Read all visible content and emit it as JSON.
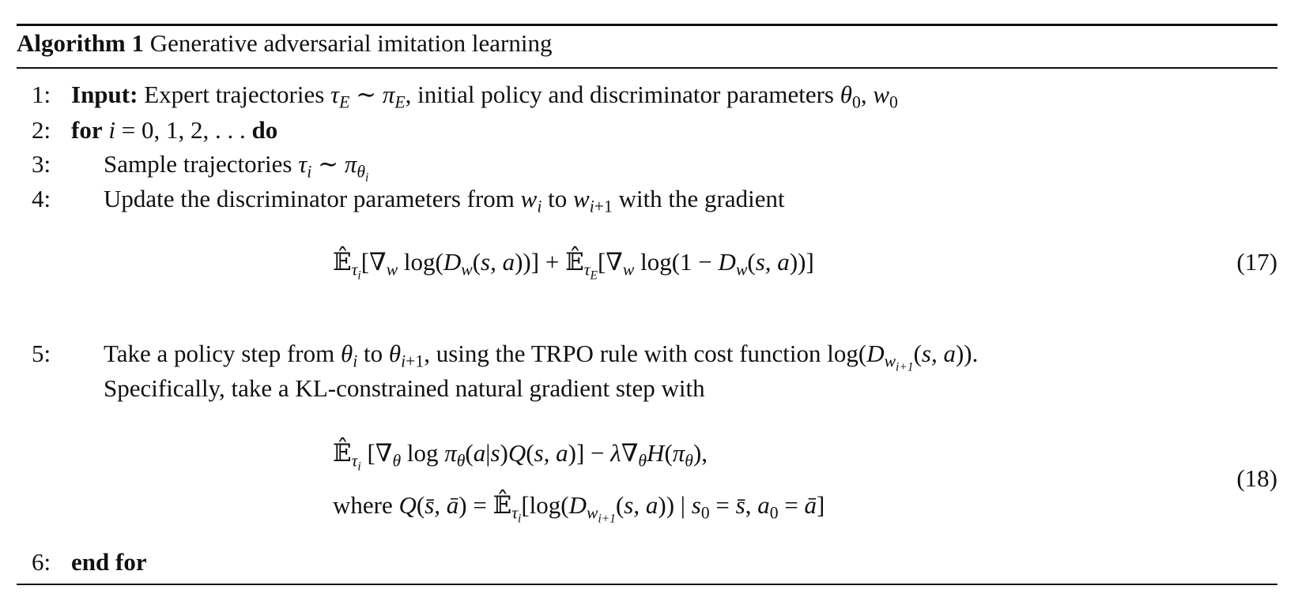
{
  "algorithm": {
    "label": "Algorithm 1",
    "title": "Generative adversarial imitation learning",
    "steps": [
      {
        "num": "1:",
        "indent": 0,
        "segments": [
          {
            "t": "Input:",
            "s": "b"
          },
          {
            "t": " Expert trajectories ",
            "s": "r"
          },
          {
            "t": "τ",
            "s": "i"
          },
          {
            "t": "E",
            "s": "sub"
          },
          {
            "t": " ∼ ",
            "s": "r"
          },
          {
            "t": "π",
            "s": "i"
          },
          {
            "t": "E",
            "s": "sub"
          },
          {
            "t": ", initial policy and discriminator parameters ",
            "s": "r"
          },
          {
            "t": "θ",
            "s": "i"
          },
          {
            "t": "0",
            "s": "subr"
          },
          {
            "t": ", ",
            "s": "r"
          },
          {
            "t": "w",
            "s": "i"
          },
          {
            "t": "0",
            "s": "subr"
          }
        ]
      },
      {
        "num": "2:",
        "indent": 0,
        "segments": [
          {
            "t": "for",
            "s": "b"
          },
          {
            "t": " ",
            "s": "r"
          },
          {
            "t": "i",
            "s": "i"
          },
          {
            "t": " = 0, 1, 2, . . . ",
            "s": "r"
          },
          {
            "t": "do",
            "s": "b"
          }
        ]
      },
      {
        "num": "3:",
        "indent": 1,
        "segments": [
          {
            "t": "Sample trajectories ",
            "s": "r"
          },
          {
            "t": "τ",
            "s": "i"
          },
          {
            "t": "i",
            "s": "sub"
          },
          {
            "t": " ∼ ",
            "s": "r"
          },
          {
            "t": "π",
            "s": "i"
          },
          {
            "t": "θ",
            "s": "sub"
          },
          {
            "t": "i",
            "s": "ss"
          }
        ]
      },
      {
        "num": "4:",
        "indent": 1,
        "segments": [
          {
            "t": "Update the discriminator parameters from ",
            "s": "r"
          },
          {
            "t": "w",
            "s": "i"
          },
          {
            "t": "i",
            "s": "sub"
          },
          {
            "t": " to ",
            "s": "r"
          },
          {
            "t": "w",
            "s": "i"
          },
          {
            "t": "i",
            "s": "sub"
          },
          {
            "t": "+1",
            "s": "subr"
          },
          {
            "t": " with the gradient",
            "s": "r"
          }
        ]
      },
      {
        "num": "5:",
        "indent": 1,
        "segments": [
          {
            "t": "Take a policy step from ",
            "s": "r"
          },
          {
            "t": "θ",
            "s": "i"
          },
          {
            "t": "i",
            "s": "sub"
          },
          {
            "t": " to ",
            "s": "r"
          },
          {
            "t": "θ",
            "s": "i"
          },
          {
            "t": "i",
            "s": "sub"
          },
          {
            "t": "+1",
            "s": "subr"
          },
          {
            "t": ", using the TRPO rule with cost function log(",
            "s": "r"
          },
          {
            "t": "D",
            "s": "i"
          },
          {
            "t": "w",
            "s": "sub"
          },
          {
            "t": "i+1",
            "s": "ss"
          },
          {
            "t": "(",
            "s": "r"
          },
          {
            "t": "s, a",
            "s": "i"
          },
          {
            "t": ")).",
            "s": "r"
          }
        ]
      },
      {
        "num": "",
        "indent": 1,
        "segments": [
          {
            "t": "Specifically, take a KL-constrained natural gradient step with",
            "s": "r"
          }
        ]
      },
      {
        "num": "6:",
        "indent": 0,
        "segments": [
          {
            "t": "end for",
            "s": "b"
          }
        ]
      }
    ],
    "equations": [
      {
        "number": "(17)",
        "lines": [
          [
            {
              "t": "𝔼̂",
              "s": "r"
            },
            {
              "t": "τ",
              "s": "sub"
            },
            {
              "t": "i",
              "s": "ss"
            },
            {
              "t": "[∇",
              "s": "r"
            },
            {
              "t": "w",
              "s": "sub"
            },
            {
              "t": " log(",
              "s": "r"
            },
            {
              "t": "D",
              "s": "i"
            },
            {
              "t": "w",
              "s": "sub"
            },
            {
              "t": "(",
              "s": "r"
            },
            {
              "t": "s, a",
              "s": "i"
            },
            {
              "t": "))] + ",
              "s": "r"
            },
            {
              "t": "𝔼̂",
              "s": "r"
            },
            {
              "t": "τ",
              "s": "sub"
            },
            {
              "t": "E",
              "s": "ss"
            },
            {
              "t": "[∇",
              "s": "r"
            },
            {
              "t": "w",
              "s": "sub"
            },
            {
              "t": " log(1 − ",
              "s": "r"
            },
            {
              "t": "D",
              "s": "i"
            },
            {
              "t": "w",
              "s": "sub"
            },
            {
              "t": "(",
              "s": "r"
            },
            {
              "t": "s, a",
              "s": "i"
            },
            {
              "t": "))]",
              "s": "r"
            }
          ]
        ]
      },
      {
        "number": "(18)",
        "lines": [
          [
            {
              "t": "𝔼̂",
              "s": "r"
            },
            {
              "t": "τ",
              "s": "sub"
            },
            {
              "t": "i",
              "s": "ss"
            },
            {
              "t": " [∇",
              "s": "r"
            },
            {
              "t": "θ",
              "s": "sub"
            },
            {
              "t": " log ",
              "s": "r"
            },
            {
              "t": "π",
              "s": "i"
            },
            {
              "t": "θ",
              "s": "sub"
            },
            {
              "t": "(",
              "s": "r"
            },
            {
              "t": "a",
              "s": "i"
            },
            {
              "t": "|",
              "s": "r"
            },
            {
              "t": "s",
              "s": "i"
            },
            {
              "t": ")",
              "s": "r"
            },
            {
              "t": "Q",
              "s": "i"
            },
            {
              "t": "(",
              "s": "r"
            },
            {
              "t": "s, a",
              "s": "i"
            },
            {
              "t": ")] − ",
              "s": "r"
            },
            {
              "t": "λ",
              "s": "i"
            },
            {
              "t": "∇",
              "s": "r"
            },
            {
              "t": "θ",
              "s": "sub"
            },
            {
              "t": "H",
              "s": "i"
            },
            {
              "t": "(",
              "s": "r"
            },
            {
              "t": "π",
              "s": "i"
            },
            {
              "t": "θ",
              "s": "sub"
            },
            {
              "t": "),",
              "s": "r"
            }
          ],
          [
            {
              "t": "where ",
              "s": "r"
            },
            {
              "t": "Q",
              "s": "i"
            },
            {
              "t": "(",
              "s": "r"
            },
            {
              "t": "s̄, ā",
              "s": "i"
            },
            {
              "t": ") = ",
              "s": "r"
            },
            {
              "t": "𝔼̂",
              "s": "r"
            },
            {
              "t": "τ",
              "s": "sub"
            },
            {
              "t": "i",
              "s": "ss"
            },
            {
              "t": "[log(",
              "s": "r"
            },
            {
              "t": "D",
              "s": "i"
            },
            {
              "t": "w",
              "s": "sub"
            },
            {
              "t": "i+1",
              "s": "ss"
            },
            {
              "t": "(",
              "s": "r"
            },
            {
              "t": "s, a",
              "s": "i"
            },
            {
              "t": ")) | ",
              "s": "r"
            },
            {
              "t": "s",
              "s": "i"
            },
            {
              "t": "0",
              "s": "subr"
            },
            {
              "t": " = ",
              "s": "r"
            },
            {
              "t": "s̄",
              "s": "i"
            },
            {
              "t": ", ",
              "s": "r"
            },
            {
              "t": "a",
              "s": "i"
            },
            {
              "t": "0",
              "s": "subr"
            },
            {
              "t": " = ",
              "s": "r"
            },
            {
              "t": "ā",
              "s": "i"
            },
            {
              "t": "]",
              "s": "r"
            }
          ]
        ]
      }
    ]
  }
}
